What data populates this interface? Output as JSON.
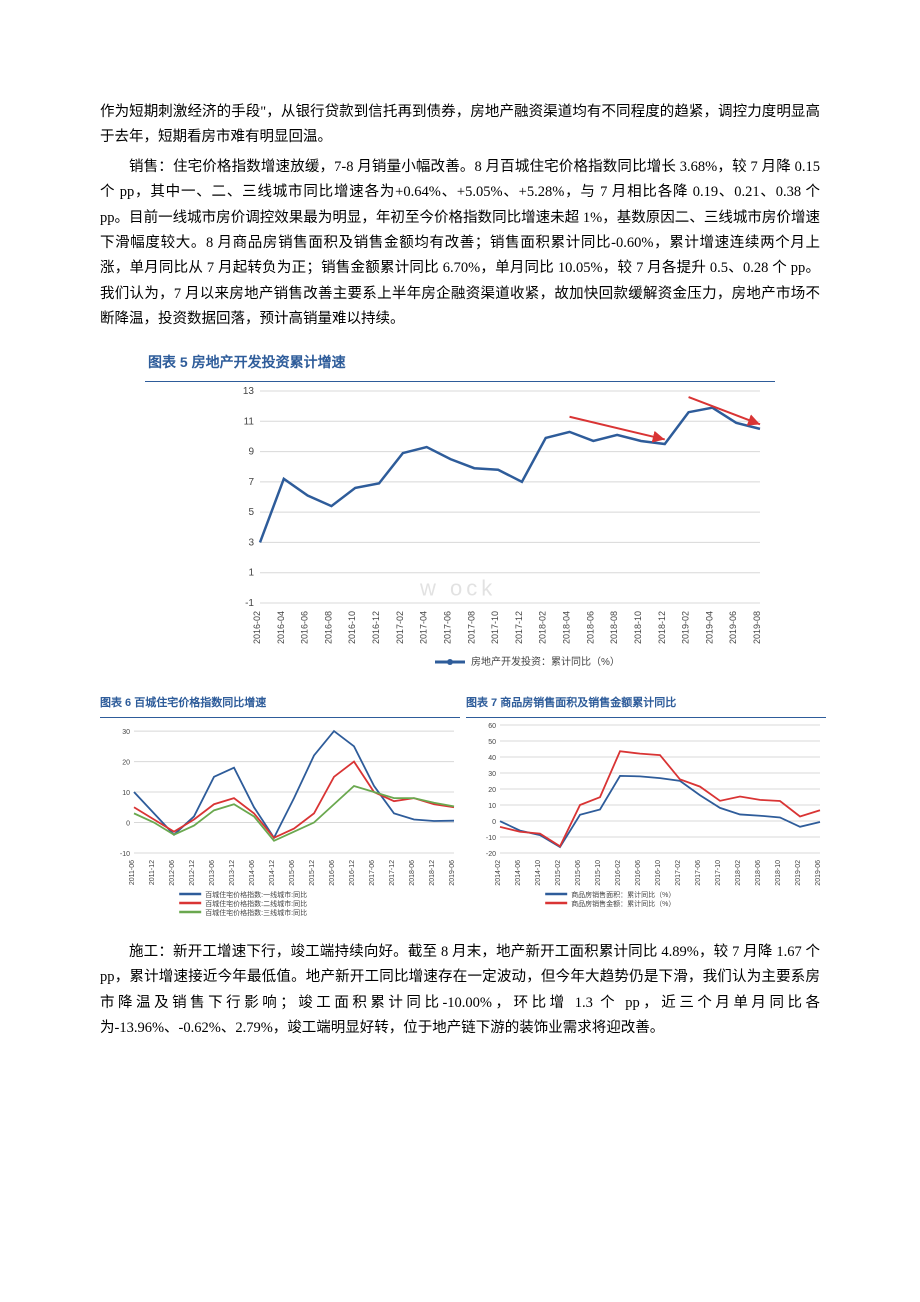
{
  "paragraphs": {
    "p1": "作为短期刺激经济的手段\"，从银行贷款到信托再到债券，房地产融资渠道均有不同程度的趋紧，调控力度明显高于去年，短期看房市难有明显回温。",
    "p2": "销售：住宅价格指数增速放缓，7-8 月销量小幅改善。8 月百城住宅价格指数同比增长 3.68%，较 7 月降 0.15 个 pp，其中一、二、三线城市同比增速各为+0.64%、+5.05%、+5.28%，与 7 月相比各降 0.19、0.21、0.38 个 pp。目前一线城市房价调控效果最为明显，年初至今价格指数同比增速未超 1%，基数原因二、三线城市房价增速下滑幅度较大。8 月商品房销售面积及销售金额均有改善；销售面积累计同比-0.60%，累计增速连续两个月上涨，单月同比从 7 月起转负为正；销售金额累计同比 6.70%，单月同比 10.05%，较 7 月各提升 0.5、0.28 个 pp。我们认为，7 月以来房地产销售改善主要系上半年房企融资渠道收紧，故加快回款缓解资金压力，房地产市场不断降温，投资数据回落，预计高销量难以持续。",
    "p3": "施工：新开工增速下行，竣工端持续向好。截至 8 月末，地产新开工面积累计同比 4.89%，较 7 月降 1.67 个 pp，累计增速接近今年最低值。地产新开工同比增速存在一定波动，但今年大趋势仍是下滑，我们认为主要系房市降温及销售下行影响；竣工面积累计同比-10.00%，环比增 1.3 个 pp，近三个月单月同比各为-13.96%、-0.62%、2.79%，竣工端明显好转，位于地产链下游的装饰业需求将迎改善。"
  },
  "chart5": {
    "title": "图表 5  房地产开发投资累计增速",
    "type": "line",
    "legend": "房地产开发投资：累计同比（%）",
    "x_labels": [
      "2016-02",
      "2016-04",
      "2016-06",
      "2016-08",
      "2016-10",
      "2016-12",
      "2017-02",
      "2017-04",
      "2017-06",
      "2017-08",
      "2017-10",
      "2017-12",
      "2018-02",
      "2018-04",
      "2018-06",
      "2018-08",
      "2018-10",
      "2018-12",
      "2019-02",
      "2019-04",
      "2019-06",
      "2019-08"
    ],
    "y_ticks": [
      -1,
      1,
      3,
      5,
      7,
      9,
      11,
      13
    ],
    "values": [
      3.0,
      7.2,
      6.1,
      5.4,
      6.6,
      6.9,
      8.9,
      9.3,
      8.5,
      7.9,
      7.8,
      7.0,
      9.9,
      10.3,
      9.7,
      10.1,
      9.7,
      9.5,
      11.6,
      11.9,
      10.9,
      10.5
    ],
    "annotation_segments": [
      {
        "start_idx": 13,
        "end_idx": 17
      },
      {
        "start_idx": 18,
        "end_idx": 21
      }
    ],
    "line_color": "#2e5c9a",
    "annotation_color": "#d93434",
    "grid_color": "#d8d8d8",
    "background_color": "#ffffff",
    "tick_fontsize": 9,
    "label_fontsize": 10
  },
  "chart6": {
    "title": "图表 6  百城住宅价格指数同比增速",
    "type": "line",
    "x_labels": [
      "2011-06",
      "2011-12",
      "2012-06",
      "2012-12",
      "2013-06",
      "2013-12",
      "2014-06",
      "2014-12",
      "2015-06",
      "2015-12",
      "2016-06",
      "2016-12",
      "2017-06",
      "2017-12",
      "2018-06",
      "2018-12",
      "2019-06"
    ],
    "y_ticks": [
      -10.0,
      0.0,
      10.0,
      20.0,
      30.0
    ],
    "legend": {
      "s1": "百城住宅价格指数:一线城市:同比",
      "s2": "百城住宅价格指数:二线城市:同比",
      "s3": "百城住宅价格指数:三线城市:同比"
    },
    "series": {
      "s1": [
        10.0,
        3.0,
        -4.0,
        2.0,
        15.0,
        18.0,
        5.0,
        -5.0,
        8.0,
        22.0,
        30.0,
        25.0,
        12.0,
        3.0,
        1.0,
        0.5,
        0.6
      ],
      "s2": [
        5.0,
        1.0,
        -3.0,
        1.0,
        6.0,
        8.0,
        3.0,
        -5.0,
        -2.0,
        3.0,
        15.0,
        20.0,
        10.0,
        7.0,
        8.0,
        6.0,
        5.0
      ],
      "s3": [
        3.0,
        0.0,
        -4.0,
        -1.0,
        4.0,
        6.0,
        2.0,
        -6.0,
        -3.0,
        0.0,
        6.0,
        12.0,
        10.0,
        8.0,
        8.0,
        6.5,
        5.3
      ]
    },
    "colors": {
      "s1": "#2e5c9a",
      "s2": "#d93434",
      "s3": "#6aa84f"
    },
    "grid_color": "#d8d8d8",
    "tick_fontsize": 7,
    "label_fontsize": 7
  },
  "chart7": {
    "title": "图表 7  商品房销售面积及销售金额累计同比",
    "type": "line",
    "x_labels": [
      "2014-02",
      "2014-06",
      "2014-10",
      "2015-02",
      "2015-06",
      "2015-10",
      "2016-02",
      "2016-06",
      "2016-10",
      "2017-02",
      "2017-06",
      "2017-10",
      "2018-02",
      "2018-06",
      "2018-10",
      "2019-02",
      "2019-06"
    ],
    "y_ticks": [
      -20,
      -10,
      0,
      10,
      20,
      30,
      40,
      50,
      60
    ],
    "legend": {
      "s1": "商品房销售面积：累计同比（%）",
      "s2": "商品房销售金额：累计同比（%）"
    },
    "series": {
      "s1": [
        -0.1,
        -6.0,
        -8.8,
        -16.3,
        3.9,
        7.2,
        28.2,
        27.9,
        26.8,
        25.1,
        16.1,
        8.2,
        4.1,
        3.3,
        2.2,
        -3.6,
        -0.6
      ],
      "s2": [
        -3.7,
        -6.7,
        -7.9,
        -15.8,
        10.0,
        14.9,
        43.6,
        42.1,
        41.2,
        26.0,
        21.5,
        12.6,
        15.3,
        13.2,
        12.5,
        2.8,
        6.7
      ]
    },
    "colors": {
      "s1": "#2e5c9a",
      "s2": "#d93434"
    },
    "grid_color": "#d8d8d8",
    "tick_fontsize": 7,
    "label_fontsize": 7
  }
}
